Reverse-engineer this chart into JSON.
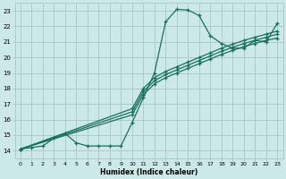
{
  "xlabel": "Humidex (Indice chaleur)",
  "bg_color": "#cce8e8",
  "grid_color": "#aacccc",
  "line_color": "#1a7060",
  "xlim": [
    -0.5,
    23.5
  ],
  "ylim": [
    13.5,
    23.5
  ],
  "xticks": [
    0,
    1,
    2,
    3,
    4,
    5,
    6,
    7,
    8,
    9,
    10,
    11,
    12,
    13,
    14,
    15,
    16,
    17,
    18,
    19,
    20,
    21,
    22,
    23
  ],
  "yticks": [
    14,
    15,
    16,
    17,
    18,
    19,
    20,
    21,
    22,
    23
  ],
  "line_hump_x": [
    0,
    1,
    2,
    3,
    4,
    5,
    6,
    7,
    8,
    9,
    10,
    11,
    12,
    13,
    14,
    15,
    16,
    17,
    18,
    19,
    20,
    21,
    22,
    23
  ],
  "line_hump_y": [
    14.1,
    14.2,
    14.3,
    14.8,
    15.1,
    14.5,
    14.3,
    14.3,
    14.3,
    14.3,
    15.8,
    17.4,
    19.0,
    22.3,
    23.1,
    23.05,
    22.7,
    21.4,
    20.9,
    20.6,
    20.6,
    21.1,
    21.0,
    22.2
  ],
  "line_a_x": [
    0,
    10,
    11,
    12,
    13,
    14,
    15,
    16,
    17,
    18,
    19,
    20,
    21,
    22,
    23
  ],
  "line_a_y": [
    14.1,
    16.3,
    17.6,
    18.3,
    18.7,
    19.0,
    19.3,
    19.6,
    19.9,
    20.2,
    20.45,
    20.7,
    20.9,
    21.1,
    21.25
  ],
  "line_b_x": [
    0,
    10,
    11,
    12,
    13,
    14,
    15,
    16,
    17,
    18,
    19,
    20,
    21,
    22,
    23
  ],
  "line_b_y": [
    14.1,
    16.5,
    17.8,
    18.5,
    18.9,
    19.2,
    19.5,
    19.8,
    20.1,
    20.4,
    20.65,
    20.9,
    21.1,
    21.3,
    21.5
  ],
  "line_c_x": [
    0,
    10,
    11,
    12,
    13,
    14,
    15,
    16,
    17,
    18,
    19,
    20,
    21,
    22,
    23
  ],
  "line_c_y": [
    14.1,
    16.7,
    18.0,
    18.7,
    19.1,
    19.4,
    19.7,
    20.0,
    20.3,
    20.6,
    20.85,
    21.1,
    21.3,
    21.5,
    21.7
  ]
}
